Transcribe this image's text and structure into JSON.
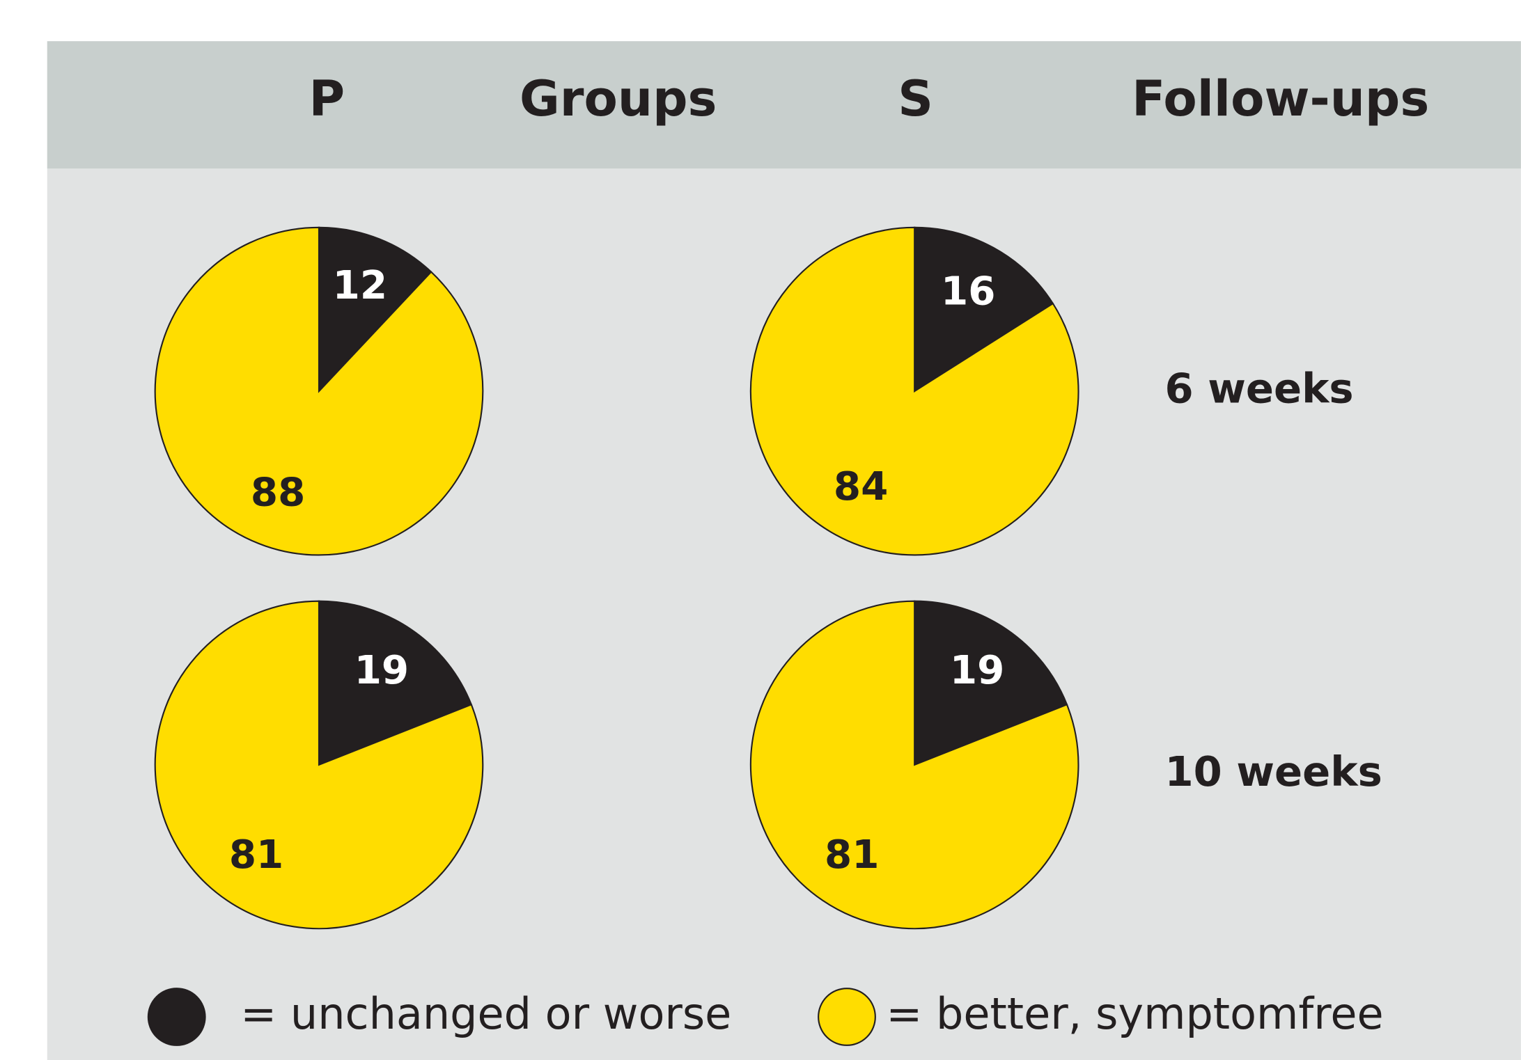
{
  "header": {
    "columns": [
      "P",
      "Groups",
      "S",
      "Follow-ups"
    ]
  },
  "rows": [
    "6 weeks",
    "10 weeks"
  ],
  "chart_data": [
    {
      "type": "pie",
      "values": [
        12,
        88
      ],
      "colors": [
        "#231f20",
        "#ffdd00"
      ]
    },
    {
      "type": "pie",
      "values": [
        16,
        84
      ],
      "colors": [
        "#231f20",
        "#ffdd00"
      ]
    },
    {
      "type": "pie",
      "values": [
        19,
        81
      ],
      "colors": [
        "#231f20",
        "#ffdd00"
      ]
    },
    {
      "type": "pie",
      "values": [
        19,
        81
      ],
      "colors": [
        "#231f20",
        "#ffdd00"
      ]
    }
  ],
  "legend": {
    "labels": [
      "= unchanged or worse",
      "= better, symptomfree"
    ],
    "colors": [
      "#231f20",
      "#ffdd00"
    ]
  }
}
